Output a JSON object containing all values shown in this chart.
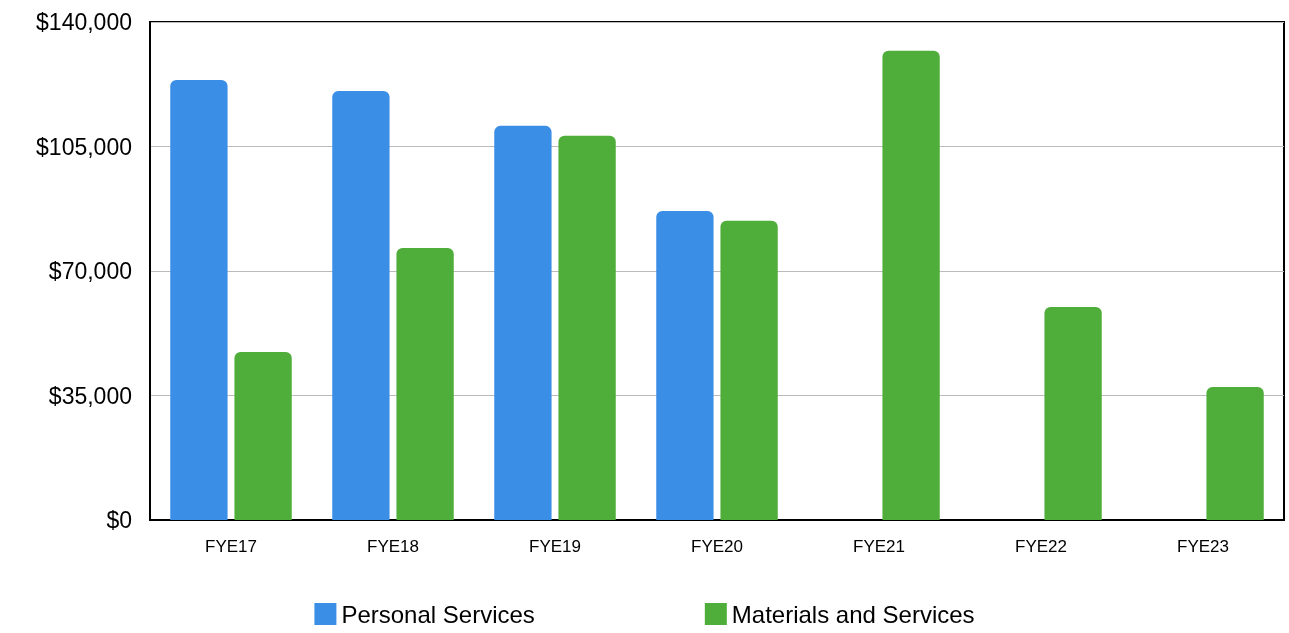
{
  "chart_data": {
    "type": "bar",
    "categories": [
      "FYE17",
      "FYE18",
      "FYE19",
      "FYE20",
      "FYE21",
      "FYE22",
      "FYE23"
    ],
    "series": [
      {
        "name": "Personal Services",
        "color": "#3b8ee6",
        "values": [
          123700,
          120600,
          110800,
          86900,
          null,
          null,
          null
        ]
      },
      {
        "name": "Materials and Services",
        "color": "#4fae3a",
        "values": [
          47200,
          76500,
          108000,
          84100,
          131900,
          59900,
          37400
        ]
      }
    ],
    "ylim": [
      0,
      140000
    ],
    "yticks": [
      {
        "value": 0,
        "label": "$0"
      },
      {
        "value": 35000,
        "label": "$35,000"
      },
      {
        "value": 70000,
        "label": "$70,000"
      },
      {
        "value": 105000,
        "label": "$105,000"
      },
      {
        "value": 140000,
        "label": "$140,000"
      }
    ],
    "grid": "y",
    "legend": "bottom"
  }
}
